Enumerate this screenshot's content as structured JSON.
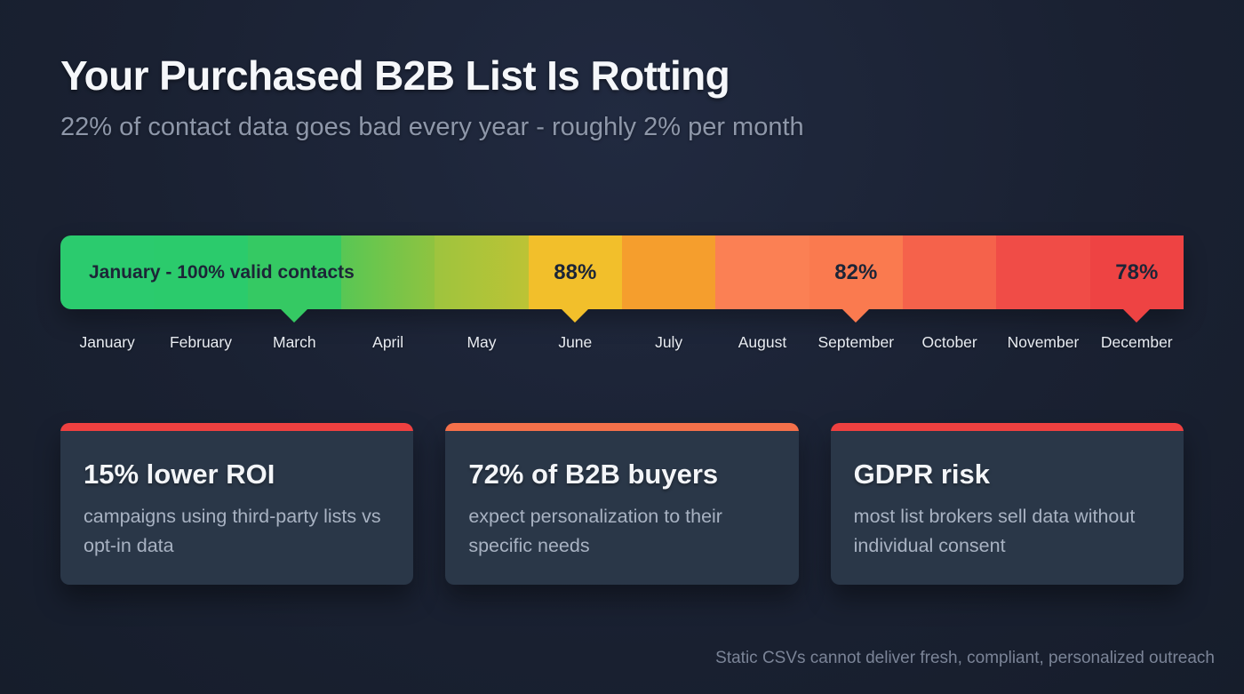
{
  "page": {
    "background": "#1A2132"
  },
  "header": {
    "title": "Your Purchased B2B List Is Rotting",
    "subtitle": "22% of contact data goes bad every year - roughly 2% per month"
  },
  "timeline": {
    "bar_label": "January - 100% valid contacts",
    "text_color": "#1c2537",
    "months": [
      {
        "label": "January",
        "color": "#2bcb6e"
      },
      {
        "label": "February",
        "color": "#2bcb6c"
      },
      {
        "label": "March",
        "color": "#35c963"
      },
      {
        "label": "April",
        "color": "#58c754",
        "color2": "#8fc340"
      },
      {
        "label": "May",
        "color": "#9ec43e",
        "color2": "#bcc335"
      },
      {
        "label": "June",
        "color": "#f2bf2b"
      },
      {
        "label": "July",
        "color": "#f59e2d"
      },
      {
        "label": "August",
        "color": "#fb8054"
      },
      {
        "label": "September",
        "color": "#fa7a4f"
      },
      {
        "label": "October",
        "color": "#f5624b"
      },
      {
        "label": "November",
        "color": "#f04c47"
      },
      {
        "label": "December",
        "color": "#ee4343"
      }
    ],
    "markers": [
      {
        "month": "June",
        "label": "88%"
      },
      {
        "month": "September",
        "label": "82%"
      },
      {
        "month": "December",
        "label": "78%"
      }
    ]
  },
  "cards": [
    {
      "accent": "#ee4040",
      "title": "15% lower ROI",
      "body": "campaigns using third-party lists vs opt-in data"
    },
    {
      "accent": "#f4704a",
      "title": "72% of B2B buyers",
      "body": "expect personalization to their specific needs"
    },
    {
      "accent": "#ee4040",
      "title": "GDPR risk",
      "body": "most list brokers sell data without individual consent"
    }
  ],
  "footer": {
    "note": "Static CSVs cannot deliver fresh, compliant, personalized outreach"
  },
  "chart_data": {
    "type": "heatmap",
    "title": "Your Purchased B2B List Is Rotting",
    "subtitle": "22% of contact data goes bad every year - roughly 2% per month",
    "categories": [
      "January",
      "February",
      "March",
      "April",
      "May",
      "June",
      "July",
      "August",
      "September",
      "October",
      "November",
      "December"
    ],
    "labeled_points": [
      {
        "month": "January",
        "valid_contacts_pct": 100
      },
      {
        "month": "June",
        "valid_contacts_pct": 88
      },
      {
        "month": "September",
        "valid_contacts_pct": 82
      },
      {
        "month": "December",
        "valid_contacts_pct": 78
      }
    ],
    "annual_decay_pct": 22,
    "monthly_decay_pct": 2,
    "segment_colors": [
      "#2bcb6e",
      "#2bcb6c",
      "#35c963",
      "#8fc340",
      "#bcc335",
      "#f2bf2b",
      "#f59e2d",
      "#fb8054",
      "#fa7a4f",
      "#f5624b",
      "#f04c47",
      "#ee4343"
    ],
    "legend_position": "none",
    "grid": false
  }
}
